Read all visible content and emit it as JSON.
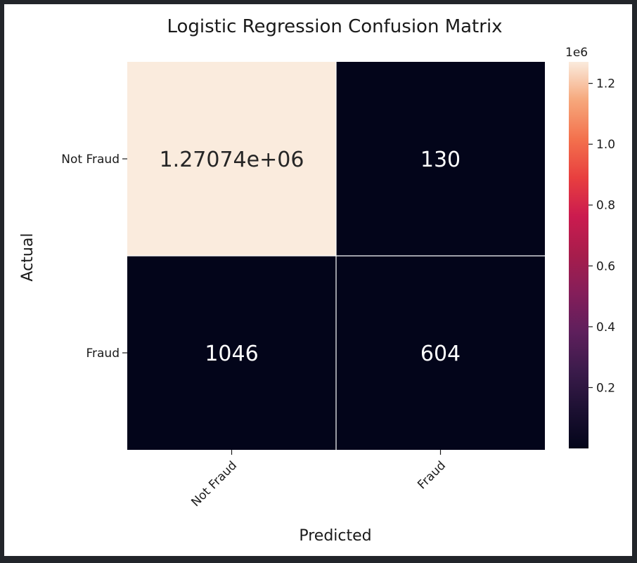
{
  "chart_data": {
    "type": "heatmap",
    "title": "Logistic Regression Confusion Matrix",
    "xlabel": "Predicted",
    "ylabel": "Actual",
    "x_categories": [
      "Not Fraud",
      "Fraud"
    ],
    "y_categories": [
      "Not Fraud",
      "Fraud"
    ],
    "values": [
      [
        1270740,
        130
      ],
      [
        1046,
        604
      ]
    ],
    "annotations": [
      [
        "1.27074e+06",
        "130"
      ],
      [
        "1046",
        "604"
      ]
    ],
    "colormap": "rocket",
    "colorbar": {
      "range": [
        0,
        1270740
      ],
      "ticks": [
        0.2,
        0.4,
        0.6,
        0.8,
        1.0,
        1.2
      ],
      "tick_labels": [
        "0.2",
        "0.4",
        "0.6",
        "0.8",
        "1.0",
        "1.2"
      ],
      "multiplier_label": "1e6",
      "tick_scale": 1000000
    },
    "xtick_rotation": 45,
    "grid_line_color": "#ffffff"
  }
}
